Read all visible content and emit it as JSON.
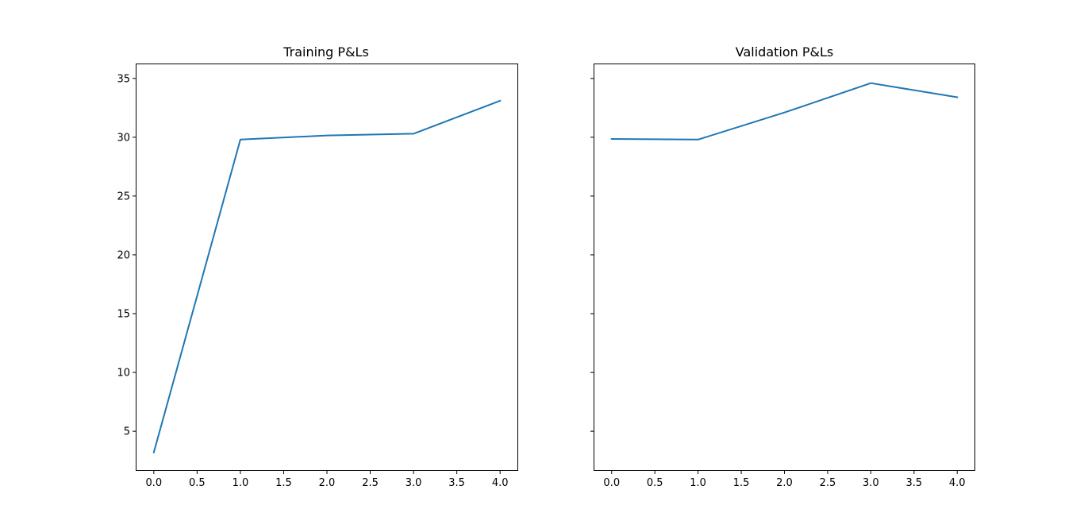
{
  "chart_data": [
    {
      "type": "line",
      "title": "Training P&Ls",
      "xlabel": "",
      "ylabel": "",
      "x": [
        0,
        1,
        2,
        3,
        4
      ],
      "series": [
        {
          "values": [
            3.2,
            29.8,
            30.15,
            30.3,
            33.1
          ]
        }
      ],
      "xlim": [
        -0.2,
        4.2
      ],
      "ylim": [
        1.7,
        36.2
      ],
      "xticks": [
        0.0,
        0.5,
        1.0,
        1.5,
        2.0,
        2.5,
        3.0,
        3.5,
        4.0
      ],
      "xtick_labels": [
        "0.0",
        "0.5",
        "1.0",
        "1.5",
        "2.0",
        "2.5",
        "3.0",
        "3.5",
        "4.0"
      ],
      "yticks": [
        5,
        10,
        15,
        20,
        25,
        30,
        35
      ],
      "ytick_labels": [
        "5",
        "10",
        "15",
        "20",
        "25",
        "30",
        "35"
      ],
      "show_ytick_labels": true,
      "grid": false,
      "line_color": "#1f77b4"
    },
    {
      "type": "line",
      "title": "Validation P&Ls",
      "xlabel": "",
      "ylabel": "",
      "x": [
        0,
        1,
        2,
        3,
        4
      ],
      "series": [
        {
          "values": [
            29.85,
            29.8,
            32.1,
            34.6,
            33.4
          ]
        }
      ],
      "xlim": [
        -0.2,
        4.2
      ],
      "ylim": [
        1.7,
        36.2
      ],
      "xticks": [
        0.0,
        0.5,
        1.0,
        1.5,
        2.0,
        2.5,
        3.0,
        3.5,
        4.0
      ],
      "xtick_labels": [
        "0.0",
        "0.5",
        "1.0",
        "1.5",
        "2.0",
        "2.5",
        "3.0",
        "3.5",
        "4.0"
      ],
      "yticks": [
        5,
        10,
        15,
        20,
        25,
        30,
        35
      ],
      "ytick_labels": [
        "",
        "",
        "",
        "",
        "",
        "",
        ""
      ],
      "show_ytick_labels": false,
      "grid": false,
      "line_color": "#1f77b4"
    }
  ]
}
